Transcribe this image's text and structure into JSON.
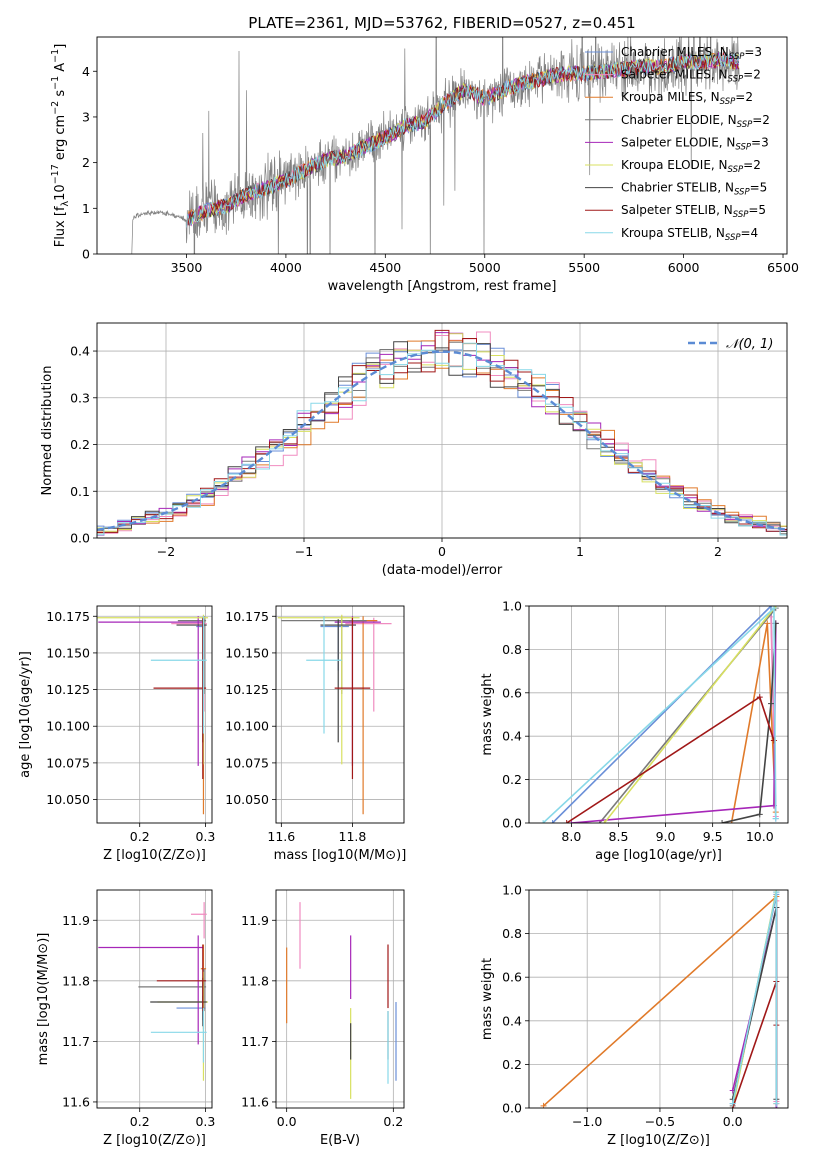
{
  "figure": {
    "title": "PLATE=2361, MJD=53762, FIBERID=0527, z=0.451"
  },
  "colors": {
    "Chabrier MILES": "#6a8fd8",
    "Salpeter MILES": "#f08cc0",
    "Kroupa MILES": "#e07a2a",
    "Chabrier ELODIE": "#7a7a7a",
    "Salpeter ELODIE": "#a626b8",
    "Kroupa ELODIE": "#d8e060",
    "Chabrier STELIB": "#444444",
    "Salpeter STELIB": "#a01818",
    "Kroupa STELIB": "#88d8e8"
  },
  "models": [
    "Chabrier MILES",
    "Salpeter MILES",
    "Kroupa MILES",
    "Chabrier ELODIE",
    "Salpeter ELODIE",
    "Kroupa ELODIE",
    "Chabrier STELIB",
    "Salpeter STELIB",
    "Kroupa STELIB"
  ],
  "chart_data": [
    {
      "id": "spectrum",
      "type": "line",
      "title": "PLATE=2361, MJD=53762, FIBERID=0527, z=0.451",
      "xlabel": "wavelength [Angstrom, rest frame]",
      "ylabel": "Flux [f_λ 10^-17 erg cm^-2 s^-1 A^-1]",
      "xlim": [
        3050,
        6520
      ],
      "ylim": [
        0,
        4.75
      ],
      "xticks": [
        3500,
        4000,
        4500,
        5000,
        5500,
        6000,
        6500
      ],
      "yticks": [
        0,
        1,
        2,
        3,
        4
      ],
      "legend_position": "upper-right",
      "legend": [
        {
          "label": "Chabrier MILES, N_SSP=3"
        },
        {
          "label": "Salpeter MILES, N_SSP=2"
        },
        {
          "label": "Kroupa MILES, N_SSP=2"
        },
        {
          "label": "Chabrier ELODIE, N_SSP=2"
        },
        {
          "label": "Salpeter ELODIE, N_SSP=3"
        },
        {
          "label": "Kroupa ELODIE, N_SSP=2"
        },
        {
          "label": "Chabrier STELIB, N_SSP=5"
        },
        {
          "label": "Salpeter STELIB, N_SSP=5"
        },
        {
          "label": "Kroupa STELIB, N_SSP=4"
        }
      ],
      "continuum": {
        "x": [
          3230,
          3300,
          3400,
          3500,
          3600,
          3700,
          3800,
          3900,
          4000,
          4100,
          4200,
          4300,
          4400,
          4500,
          4600,
          4700,
          4800,
          4900,
          5000,
          5100,
          5200,
          5300,
          5400,
          5500,
          5600,
          5700,
          5800,
          5900,
          6000,
          6100,
          6200,
          6280
        ],
        "y": [
          0.8,
          0.9,
          0.9,
          0.75,
          0.95,
          1.05,
          1.3,
          1.45,
          1.6,
          1.85,
          2.05,
          2.15,
          2.35,
          2.55,
          2.8,
          2.9,
          3.3,
          3.6,
          3.4,
          3.6,
          3.75,
          3.85,
          3.95,
          3.95,
          4.0,
          4.05,
          4.1,
          4.1,
          4.2,
          4.2,
          4.25,
          4.2
        ]
      }
    },
    {
      "id": "residuals",
      "type": "step",
      "xlabel": "(data-model)/error",
      "ylabel": "Normed distribution",
      "xlim": [
        -2.5,
        2.5
      ],
      "ylim": [
        0,
        0.46
      ],
      "xticks": [
        -2,
        -1,
        0,
        1,
        2
      ],
      "yticks": [
        0.0,
        0.1,
        0.2,
        0.3,
        0.4
      ],
      "legend": [
        {
          "label": "𝒩(0, 1)"
        }
      ]
    },
    {
      "id": "age-vs-Z",
      "type": "errorbar",
      "xlabel": "Z [log10(Z/Z⊙)]",
      "ylabel": "age [log10(age/yr)]",
      "xlim": [
        0.135,
        0.31
      ],
      "ylim": [
        10.034,
        10.182
      ],
      "xticks": [
        0.2,
        0.3
      ],
      "yticks": [
        10.05,
        10.075,
        10.1,
        10.125,
        10.15,
        10.175
      ],
      "points": [
        {
          "model": "Chabrier MILES",
          "x": 0.296,
          "y": 10.168,
          "xerr": [
            0.01,
            0.003
          ],
          "yerr": [
            0.03,
            0.004
          ]
        },
        {
          "model": "Salpeter MILES",
          "x": 0.298,
          "y": 10.17,
          "xerr": [
            0.05,
            0.004
          ],
          "yerr": [
            0.06,
            0.004
          ]
        },
        {
          "model": "Kroupa MILES",
          "x": 0.297,
          "y": 10.172,
          "xerr": [
            0.003,
            0.003
          ],
          "yerr": [
            0.132,
            0.003
          ]
        },
        {
          "model": "Chabrier ELODIE",
          "x": 0.298,
          "y": 10.172,
          "xerr": [
            0.04,
            0.003
          ],
          "yerr": [
            0.05,
            0.003
          ]
        },
        {
          "model": "Salpeter ELODIE",
          "x": 0.289,
          "y": 10.171,
          "xerr": [
            0.152,
            0.008
          ],
          "yerr": [
            0.098,
            0.004
          ]
        },
        {
          "model": "Kroupa ELODIE",
          "x": 0.297,
          "y": 10.174,
          "xerr": [
            0.165,
            0.007
          ],
          "yerr": [
            0.1,
            0.002
          ]
        },
        {
          "model": "Chabrier STELIB",
          "x": 0.296,
          "y": 10.169,
          "xerr": [
            0.04,
            0.006
          ],
          "yerr": [
            0.08,
            0.004
          ]
        },
        {
          "model": "Salpeter STELIB",
          "x": 0.296,
          "y": 10.126,
          "xerr": [
            0.075,
            0.005
          ],
          "yerr": [
            0.062,
            0.048
          ]
        },
        {
          "model": "Kroupa STELIB",
          "x": 0.297,
          "y": 10.145,
          "xerr": [
            0.08,
            0.005
          ],
          "yerr": [
            0.05,
            0.03
          ]
        }
      ]
    },
    {
      "id": "age-vs-mass",
      "type": "errorbar",
      "xlabel": "mass [log10(M/M⊙)]",
      "ylabel": "",
      "xlim": [
        11.585,
        11.945
      ],
      "ylim": [
        10.034,
        10.182
      ],
      "xticks": [
        11.6,
        11.8
      ],
      "yticks": [
        10.05,
        10.075,
        10.1,
        10.125,
        10.15,
        10.175
      ],
      "points": [
        {
          "model": "Chabrier MILES",
          "x": 11.76,
          "y": 10.168,
          "xerr": [
            0.05,
            0.03
          ],
          "yerr": [
            0.03,
            0.004
          ]
        },
        {
          "model": "Salpeter MILES",
          "x": 11.86,
          "y": 10.17,
          "xerr": [
            0.08,
            0.05
          ],
          "yerr": [
            0.06,
            0.004
          ]
        },
        {
          "model": "Kroupa MILES",
          "x": 11.83,
          "y": 10.172,
          "xerr": [
            0.04,
            0.04
          ],
          "yerr": [
            0.132,
            0.003
          ]
        },
        {
          "model": "Chabrier ELODIE",
          "x": 11.77,
          "y": 10.172,
          "xerr": [
            0.17,
            0.07
          ],
          "yerr": [
            0.05,
            0.003
          ]
        },
        {
          "model": "Salpeter ELODIE",
          "x": 11.8,
          "y": 10.171,
          "xerr": [
            0.05,
            0.08
          ],
          "yerr": [
            0.098,
            0.004
          ]
        },
        {
          "model": "Kroupa ELODIE",
          "x": 11.77,
          "y": 10.174,
          "xerr": [
            0.18,
            0.05
          ],
          "yerr": [
            0.1,
            0.002
          ]
        },
        {
          "model": "Chabrier STELIB",
          "x": 11.76,
          "y": 10.169,
          "xerr": [
            0.05,
            0.05
          ],
          "yerr": [
            0.08,
            0.004
          ]
        },
        {
          "model": "Salpeter STELIB",
          "x": 11.8,
          "y": 10.126,
          "xerr": [
            0.05,
            0.05
          ],
          "yerr": [
            0.062,
            0.048
          ]
        },
        {
          "model": "Kroupa STELIB",
          "x": 11.72,
          "y": 10.145,
          "xerr": [
            0.05,
            0.05
          ],
          "yerr": [
            0.05,
            0.03
          ]
        }
      ]
    },
    {
      "id": "weight-vs-age",
      "type": "line",
      "xlabel": "age [log10(age/yr)]",
      "ylabel": "mass weight",
      "xlim": [
        7.55,
        10.3
      ],
      "ylim": [
        0,
        1
      ],
      "xticks": [
        8.0,
        8.5,
        9.0,
        9.5,
        10.0
      ],
      "yticks": [
        0.0,
        0.2,
        0.4,
        0.6,
        0.8,
        1.0
      ],
      "series": [
        {
          "model": "Chabrier MILES",
          "x": [
            7.8,
            10.12,
            10.17
          ],
          "y": [
            0.0,
            1.0,
            0.02
          ]
        },
        {
          "model": "Salpeter MILES",
          "x": [
            10.12,
            10.17
          ],
          "y": [
            0.95,
            0.03
          ]
        },
        {
          "model": "Kroupa MILES",
          "x": [
            9.7,
            10.08,
            10.17
          ],
          "y": [
            0.0,
            0.92,
            0.05
          ]
        },
        {
          "model": "Chabrier ELODIE",
          "x": [
            8.3,
            10.17
          ],
          "y": [
            0.0,
            0.99
          ]
        },
        {
          "model": "Salpeter ELODIE",
          "x": [
            8.0,
            10.15,
            10.17
          ],
          "y": [
            0.0,
            0.08,
            0.92
          ]
        },
        {
          "model": "Kroupa ELODIE",
          "x": [
            8.35,
            10.17
          ],
          "y": [
            0.0,
            1.0
          ]
        },
        {
          "model": "Chabrier STELIB",
          "x": [
            9.6,
            10.0,
            10.12,
            10.17
          ],
          "y": [
            0.0,
            0.04,
            0.55,
            0.92
          ]
        },
        {
          "model": "Salpeter STELIB",
          "x": [
            7.95,
            10.0,
            10.15
          ],
          "y": [
            0.0,
            0.58,
            0.38
          ]
        },
        {
          "model": "Kroupa STELIB",
          "x": [
            7.7,
            10.15,
            10.17
          ],
          "y": [
            0.0,
            0.99,
            0.02
          ]
        }
      ]
    },
    {
      "id": "mass-vs-Z",
      "type": "errorbar",
      "xlabel": "Z [log10(Z/Z⊙)]",
      "ylabel": "mass [log10(M/M⊙)]",
      "xlim": [
        0.135,
        0.31
      ],
      "ylim": [
        11.59,
        11.95
      ],
      "xticks": [
        0.2,
        0.3
      ],
      "yticks": [
        11.6,
        11.7,
        11.8,
        11.9
      ],
      "points": [
        {
          "model": "Chabrier MILES",
          "x": 0.296,
          "y": 11.755,
          "xerr": [
            0.04,
            0.004
          ],
          "yerr": [
            0.02,
            0.02
          ]
        },
        {
          "model": "Salpeter MILES",
          "x": 0.298,
          "y": 11.91,
          "xerr": [
            0.02,
            0.004
          ],
          "yerr": [
            0.04,
            0.02
          ]
        },
        {
          "model": "Kroupa MILES",
          "x": 0.297,
          "y": 11.82,
          "xerr": [
            0.004,
            0.004
          ],
          "yerr": [
            0.1,
            0.04
          ]
        },
        {
          "model": "Chabrier ELODIE",
          "x": 0.298,
          "y": 11.79,
          "xerr": [
            0.1,
            0.003
          ],
          "yerr": [
            0.04,
            0.03
          ]
        },
        {
          "model": "Salpeter ELODIE",
          "x": 0.289,
          "y": 11.855,
          "xerr": [
            0.152,
            0.008
          ],
          "yerr": [
            0.16,
            0.02
          ]
        },
        {
          "model": "Kroupa ELODIE",
          "x": 0.297,
          "y": 11.765,
          "xerr": [
            0.07,
            0.007
          ],
          "yerr": [
            0.13,
            0.05
          ]
        },
        {
          "model": "Chabrier STELIB",
          "x": 0.296,
          "y": 11.765,
          "xerr": [
            0.08,
            0.006
          ],
          "yerr": [
            0.04,
            0.04
          ]
        },
        {
          "model": "Salpeter STELIB",
          "x": 0.296,
          "y": 11.8,
          "xerr": [
            0.07,
            0.005
          ],
          "yerr": [
            0.05,
            0.06
          ]
        },
        {
          "model": "Kroupa STELIB",
          "x": 0.297,
          "y": 11.715,
          "xerr": [
            0.08,
            0.005
          ],
          "yerr": [
            0.05,
            0.04
          ]
        }
      ]
    },
    {
      "id": "mass-vs-EBV",
      "type": "errorbar",
      "xlabel": "E(B-V)",
      "ylabel": "",
      "xlim": [
        -0.02,
        0.22
      ],
      "ylim": [
        11.59,
        11.95
      ],
      "xticks": [
        0.0,
        0.2
      ],
      "yticks": [
        11.6,
        11.7,
        11.8,
        11.9
      ],
      "points": [
        {
          "model": "Chabrier MILES",
          "x": 0.205,
          "y": 11.7,
          "xerr": [
            0,
            0
          ],
          "yerr": [
            0.065,
            0.065
          ]
        },
        {
          "model": "Salpeter MILES",
          "x": 0.025,
          "y": 11.87,
          "xerr": [
            0,
            0
          ],
          "yerr": [
            0.05,
            0.06
          ]
        },
        {
          "model": "Kroupa MILES",
          "x": 0.0,
          "y": 11.79,
          "xerr": [
            0,
            0
          ],
          "yerr": [
            0.06,
            0.065
          ]
        },
        {
          "model": "Chabrier ELODIE",
          "x": 0.19,
          "y": 11.72,
          "xerr": [
            0,
            0
          ],
          "yerr": [
            0.05,
            0.03
          ]
        },
        {
          "model": "Salpeter ELODIE",
          "x": 0.12,
          "y": 11.83,
          "xerr": [
            0,
            0
          ],
          "yerr": [
            0.06,
            0.045
          ]
        },
        {
          "model": "Kroupa ELODIE",
          "x": 0.12,
          "y": 11.68,
          "xerr": [
            0,
            0
          ],
          "yerr": [
            0.075,
            0.075
          ]
        },
        {
          "model": "Chabrier STELIB",
          "x": 0.12,
          "y": 11.7,
          "xerr": [
            0,
            0
          ],
          "yerr": [
            0.03,
            0.03
          ]
        },
        {
          "model": "Salpeter STELIB",
          "x": 0.19,
          "y": 11.81,
          "xerr": [
            0,
            0
          ],
          "yerr": [
            0.055,
            0.05
          ]
        },
        {
          "model": "Kroupa STELIB",
          "x": 0.19,
          "y": 11.69,
          "xerr": [
            0,
            0
          ],
          "yerr": [
            0.06,
            0.06
          ]
        }
      ]
    },
    {
      "id": "weight-vs-Z",
      "type": "line",
      "xlabel": "Z [log10(Z/Z⊙)]",
      "ylabel": "mass weight",
      "xlim": [
        -1.4,
        0.38
      ],
      "ylim": [
        0,
        1
      ],
      "xticks": [
        -1.0,
        -0.5,
        0.0
      ],
      "yticks": [
        0.0,
        0.2,
        0.4,
        0.6,
        0.8,
        1.0
      ],
      "series": [
        {
          "model": "Chabrier MILES",
          "x": [
            0.0,
            0.3,
            0.3
          ],
          "y": [
            0.02,
            0.98,
            0.0
          ]
        },
        {
          "model": "Salpeter MILES",
          "x": [
            0.3,
            0.3
          ],
          "y": [
            0.95,
            0.03
          ]
        },
        {
          "model": "Kroupa MILES",
          "x": [
            -1.3,
            0.3,
            0.3
          ],
          "y": [
            0.01,
            0.97,
            0.02
          ]
        },
        {
          "model": "Chabrier ELODIE",
          "x": [
            0.0,
            0.3
          ],
          "y": [
            0.01,
            0.99
          ]
        },
        {
          "model": "Salpeter ELODIE",
          "x": [
            0.0,
            0.3,
            0.3
          ],
          "y": [
            0.08,
            0.92,
            0.0
          ]
        },
        {
          "model": "Kroupa ELODIE",
          "x": [
            0.0,
            0.3
          ],
          "y": [
            0.0,
            1.0
          ]
        },
        {
          "model": "Chabrier STELIB",
          "x": [
            0.0,
            0.3,
            0.3
          ],
          "y": [
            0.04,
            0.92,
            0.04
          ]
        },
        {
          "model": "Salpeter STELIB",
          "x": [
            0.0,
            0.3,
            0.3
          ],
          "y": [
            0.0,
            0.58,
            0.38
          ]
        },
        {
          "model": "Kroupa STELIB",
          "x": [
            0.0,
            0.3,
            0.3
          ],
          "y": [
            0.02,
            0.99,
            0.02
          ]
        }
      ]
    }
  ]
}
